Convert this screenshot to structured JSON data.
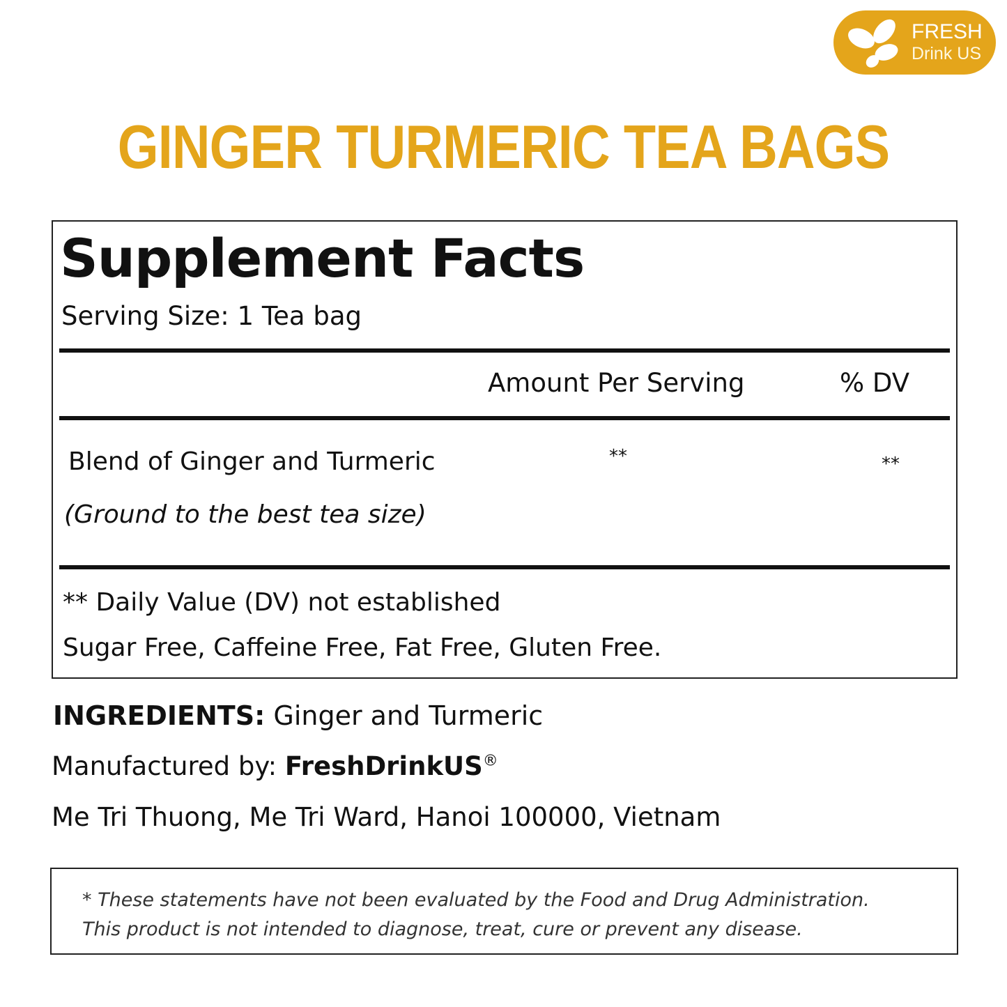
{
  "brand": {
    "logo_line1": "FRESH",
    "logo_line2": "Drink US",
    "color": "#e4a51b"
  },
  "title": "GINGER TURMERIC TEA BAGS",
  "facts": {
    "heading": "Supplement Facts",
    "serving_size": "Serving Size: 1 Tea bag",
    "col_amount": "Amount Per Serving",
    "col_dv": "% DV",
    "row": {
      "name": "Blend of Ginger and Turmeric",
      "note": "(Ground to the best tea size)",
      "amount": "**",
      "dv": "**"
    },
    "footnote": "** Daily Value (DV) not established",
    "free_list": "Sugar Free, Caffeine Free, Fat Free, Gluten Free."
  },
  "ingredients": {
    "label": "INGREDIENTS:",
    "value": "Ginger and Turmeric"
  },
  "manufacturer": {
    "label": "Manufactured by:",
    "name": "FreshDrinkUS",
    "mark": "®",
    "address": "Me Tri Thuong, Me Tri Ward, Hanoi 100000, Vietnam"
  },
  "disclaimer": {
    "line1": "* These statements have not been evaluated by the Food and Drug Administration.",
    "line2": "This product is not intended to diagnose, treat, cure or prevent any disease."
  }
}
